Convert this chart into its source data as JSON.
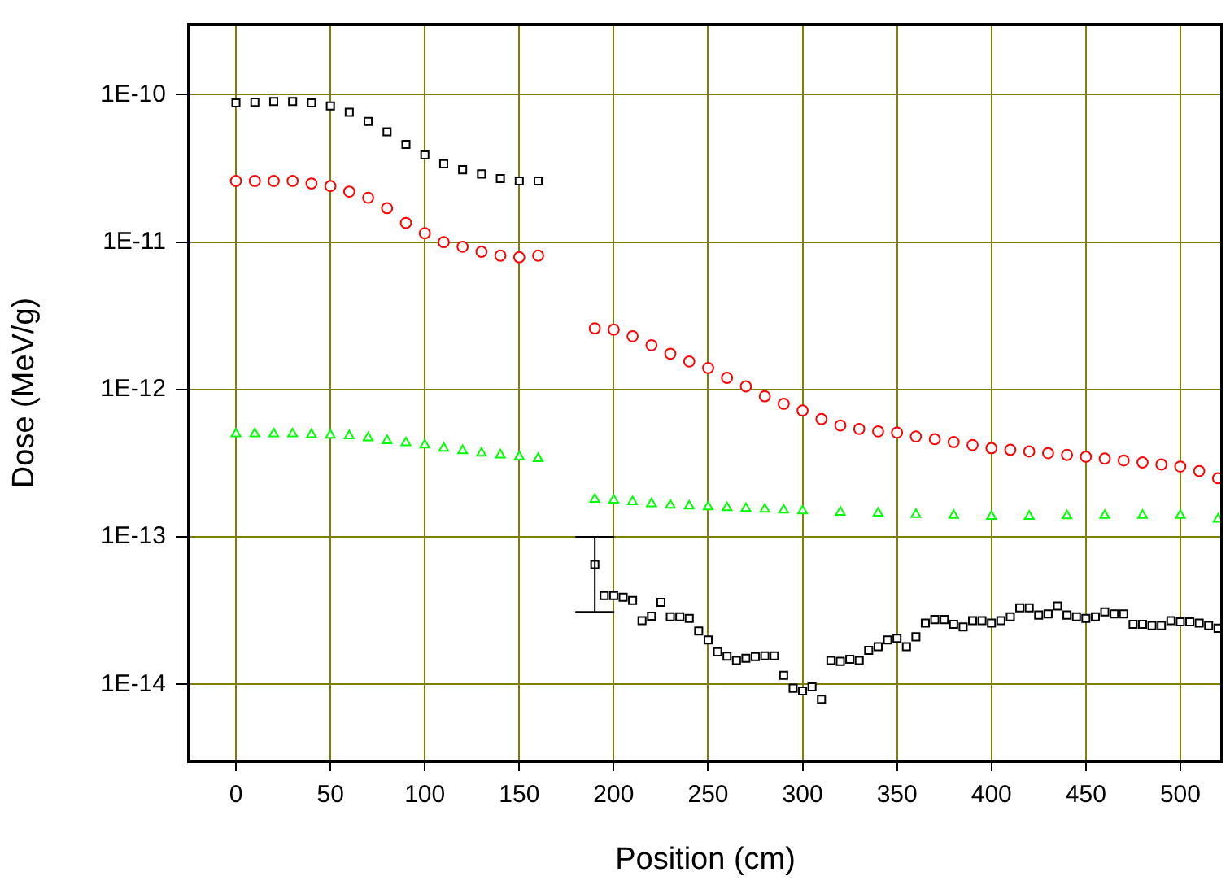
{
  "chart_data": {
    "type": "scatter",
    "xlabel": "Position (cm)",
    "ylabel": "Dose (MeV/g)",
    "log": "y",
    "grid": true,
    "xlim": [
      -25,
      522
    ],
    "xticks": [
      0,
      50,
      100,
      150,
      200,
      250,
      300,
      350,
      400,
      450,
      500
    ],
    "ylim": [
      3e-15,
      3e-10
    ],
    "yticks": [
      {
        "value": 1e-14,
        "label": "1E-14"
      },
      {
        "value": 1e-13,
        "label": "1E-13"
      },
      {
        "value": 1e-12,
        "label": "1E-12"
      },
      {
        "value": 1e-11,
        "label": "1E-11"
      },
      {
        "value": 1e-10,
        "label": "1E-10"
      }
    ],
    "series": [
      {
        "color": "#000000",
        "marker": "square",
        "x": [
          0,
          10,
          20,
          30,
          40,
          50,
          60,
          70,
          80,
          90,
          100,
          110,
          120,
          130,
          140,
          150,
          160,
          175,
          190,
          195,
          200,
          205,
          210,
          215,
          220,
          225,
          230,
          235,
          240,
          245,
          250,
          255,
          260,
          265,
          270,
          275,
          280,
          285,
          290,
          295,
          300,
          305,
          310,
          315,
          320,
          325,
          330,
          335,
          340,
          345,
          350,
          355,
          360,
          365,
          370,
          375,
          380,
          385,
          390,
          395,
          400,
          405,
          410,
          415,
          420,
          425,
          430,
          435,
          440,
          445,
          450,
          455,
          460,
          465,
          470,
          475,
          480,
          485,
          490,
          495,
          500,
          505,
          510,
          515,
          520
        ],
        "values": [
          8.8e-11,
          8.9e-11,
          9e-11,
          9e-11,
          8.8e-11,
          8.4e-11,
          7.6e-11,
          6.6e-11,
          5.6e-11,
          4.6e-11,
          3.9e-11,
          3.4e-11,
          3.1e-11,
          2.9e-11,
          2.7e-11,
          2.6e-11,
          2.6e-11,
          null,
          6.5e-14,
          4e-14,
          4e-14,
          3.9e-14,
          3.7e-14,
          2.7e-14,
          2.9e-14,
          3.6e-14,
          2.87e-14,
          2.87e-14,
          2.8e-14,
          2.3e-14,
          2e-14,
          1.66e-14,
          1.55e-14,
          1.45e-14,
          1.5e-14,
          1.54e-14,
          1.56e-14,
          1.56e-14,
          1.15e-14,
          9.4e-15,
          9e-15,
          9.6e-15,
          7.9e-15,
          1.45e-14,
          1.43e-14,
          1.48e-14,
          1.45e-14,
          1.7e-14,
          1.8e-14,
          2e-14,
          2.05e-14,
          1.8e-14,
          2.1e-14,
          2.6e-14,
          2.75e-14,
          2.75e-14,
          2.55e-14,
          2.45e-14,
          2.7e-14,
          2.7e-14,
          2.6e-14,
          2.7e-14,
          2.87e-14,
          3.3e-14,
          3.3e-14,
          2.95e-14,
          3e-14,
          3.4e-14,
          2.95e-14,
          2.87e-14,
          2.8e-14,
          2.87e-14,
          3.1e-14,
          3e-14,
          3e-14,
          2.55e-14,
          2.55e-14,
          2.5e-14,
          2.5e-14,
          2.7e-14,
          2.65e-14,
          2.65e-14,
          2.6e-14,
          2.5e-14,
          2.4e-14
        ],
        "errors": [
          null,
          null,
          null,
          null,
          null,
          null,
          null,
          null,
          null,
          null,
          null,
          null,
          null,
          null,
          null,
          null,
          null,
          null,
          [
            3.1e-14,
            1e-13
          ],
          null,
          null,
          null,
          null,
          null,
          null,
          null,
          null,
          null,
          null,
          null,
          null,
          null,
          null,
          null,
          null,
          null,
          null,
          null,
          null,
          null,
          null,
          null,
          null,
          null,
          null,
          null,
          null,
          null,
          null,
          null,
          null,
          null,
          null,
          null,
          null,
          null,
          null,
          null,
          null,
          null,
          null,
          null,
          null,
          null,
          null,
          null,
          null,
          null,
          null,
          null,
          null,
          null,
          null,
          null,
          null,
          null,
          null,
          null,
          null,
          null,
          null,
          null,
          null,
          null,
          null
        ]
      },
      {
        "color": "#ff0000",
        "marker": "circle",
        "x": [
          0,
          10,
          20,
          30,
          40,
          50,
          60,
          70,
          80,
          90,
          100,
          110,
          120,
          130,
          140,
          150,
          160,
          175,
          190,
          200,
          210,
          220,
          230,
          240,
          250,
          260,
          270,
          280,
          290,
          300,
          310,
          320,
          330,
          340,
          350,
          360,
          370,
          380,
          390,
          400,
          410,
          420,
          430,
          440,
          450,
          460,
          470,
          480,
          490,
          500,
          510,
          520
        ],
        "values": [
          2.6e-11,
          2.6e-11,
          2.6e-11,
          2.6e-11,
          2.5e-11,
          2.4e-11,
          2.2e-11,
          2e-11,
          1.7e-11,
          1.35e-11,
          1.15e-11,
          1e-11,
          9.3e-12,
          8.6e-12,
          8.1e-12,
          7.9e-12,
          8.1e-12,
          null,
          2.6e-12,
          2.55e-12,
          2.3e-12,
          2e-12,
          1.75e-12,
          1.55e-12,
          1.4e-12,
          1.2e-12,
          1.05e-12,
          9e-13,
          8e-13,
          7.2e-13,
          6.3e-13,
          5.7e-13,
          5.4e-13,
          5.2e-13,
          5.1e-13,
          4.8e-13,
          4.6e-13,
          4.4e-13,
          4.2e-13,
          4e-13,
          3.9e-13,
          3.8e-13,
          3.7e-13,
          3.6e-13,
          3.5e-13,
          3.4e-13,
          3.3e-13,
          3.2e-13,
          3.1e-13,
          3e-13,
          2.8e-13,
          2.5e-13
        ]
      },
      {
        "color": "#00ff00",
        "marker": "triangle",
        "x": [
          0,
          10,
          20,
          30,
          40,
          50,
          60,
          70,
          80,
          90,
          100,
          110,
          120,
          130,
          140,
          150,
          160,
          175,
          190,
          200,
          210,
          220,
          230,
          240,
          250,
          260,
          270,
          280,
          290,
          300,
          320,
          340,
          360,
          380,
          400,
          420,
          440,
          460,
          480,
          500,
          520
        ],
        "values": [
          5e-13,
          5e-13,
          5e-13,
          5e-13,
          4.95e-13,
          4.9e-13,
          4.85e-13,
          4.7e-13,
          4.5e-13,
          4.35e-13,
          4.2e-13,
          4e-13,
          3.85e-13,
          3.7e-13,
          3.6e-13,
          3.5e-13,
          3.4e-13,
          null,
          1.8e-13,
          1.78e-13,
          1.73e-13,
          1.68e-13,
          1.64e-13,
          1.62e-13,
          1.6e-13,
          1.58e-13,
          1.56e-13,
          1.54e-13,
          1.52e-13,
          1.5e-13,
          1.47e-13,
          1.45e-13,
          1.42e-13,
          1.4e-13,
          1.38e-13,
          1.38e-13,
          1.39e-13,
          1.4e-13,
          1.4e-13,
          1.4e-13,
          1.32e-13
        ]
      }
    ]
  }
}
